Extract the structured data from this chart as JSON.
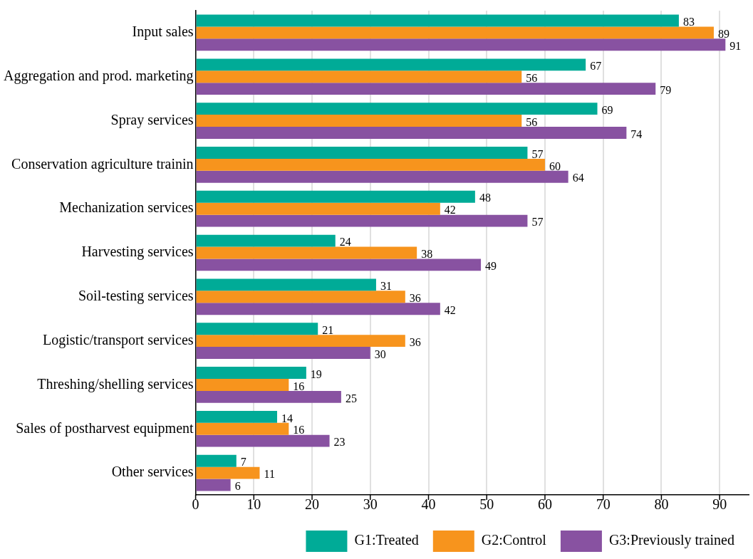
{
  "chart_data": {
    "type": "bar",
    "orientation": "horizontal",
    "categories": [
      "Input sales",
      "Aggregation and prod. marketing",
      "Spray services",
      "Conservation agriculture trainin",
      "Mechanization services",
      "Harvesting services",
      "Soil-testing services",
      "Logistic/transport services",
      "Threshing/shelling services",
      "Sales of postharvest equipment",
      "Other services"
    ],
    "series": [
      {
        "name": "G1:Treated",
        "color": "#00ab97",
        "values": [
          83,
          67,
          69,
          57,
          48,
          24,
          31,
          21,
          19,
          14,
          7
        ]
      },
      {
        "name": "G2:Control",
        "color": "#f7941d",
        "values": [
          89,
          56,
          56,
          60,
          42,
          38,
          36,
          36,
          16,
          16,
          11
        ]
      },
      {
        "name": "G3:Previously trained",
        "color": "#8852a1",
        "values": [
          91,
          79,
          74,
          64,
          57,
          49,
          42,
          30,
          25,
          23,
          6
        ]
      }
    ],
    "xlim": [
      0,
      95
    ],
    "xticks": [
      0,
      10,
      20,
      30,
      40,
      50,
      60,
      70,
      80,
      90
    ],
    "grid": "x",
    "legend": "bottom",
    "data_labels": true
  }
}
